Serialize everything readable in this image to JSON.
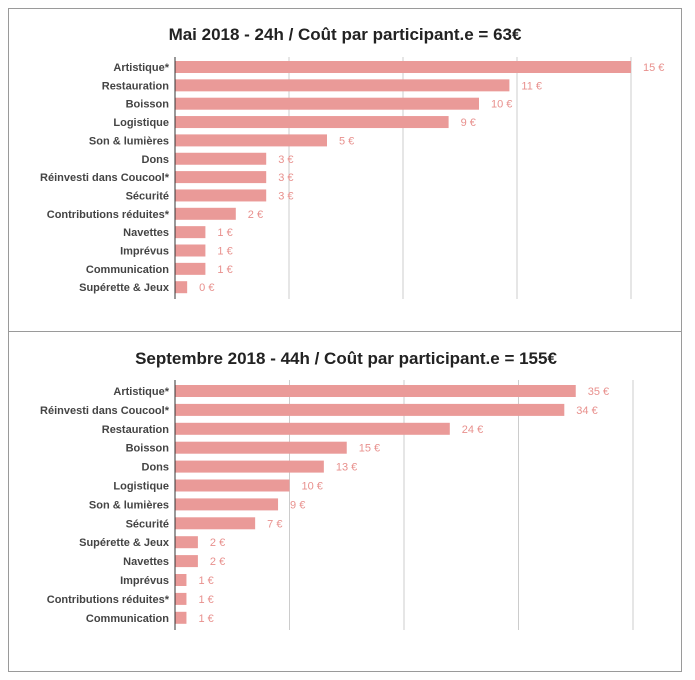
{
  "colors": {
    "bar": "#ea9a98",
    "label": "#e8908d",
    "grid": "#cccccc",
    "axis": "#333333",
    "text": "#444444",
    "title": "#222222"
  },
  "chart_data": [
    {
      "type": "bar",
      "orientation": "horizontal",
      "title": "Mai 2018 - 24h / Coût par participant.e = 63€",
      "categories": [
        "Artistique*",
        "Restauration",
        "Boisson",
        "Logistique",
        "Son & lumières",
        "Dons",
        "Réinvesti dans Coucool*",
        "Sécurité",
        "Contributions réduites*",
        "Navettes",
        "Imprévus",
        "Communication",
        "Supérette & Jeux"
      ],
      "values": [
        15,
        11,
        10,
        9,
        5,
        3,
        3,
        3,
        2,
        1,
        1,
        1,
        0.4
      ],
      "value_labels": [
        "15 €",
        "11 €",
        "10 €",
        "9 €",
        "5 €",
        "3 €",
        "3 €",
        "3 €",
        "2 €",
        "1 €",
        "1 €",
        "1 €",
        "0 €"
      ],
      "xlim": [
        0,
        15
      ],
      "grid": true,
      "legend": "none"
    },
    {
      "type": "bar",
      "orientation": "horizontal",
      "title": "Septembre 2018 - 44h / Coût par participant.e = 155€",
      "categories": [
        "Artistique*",
        "Réinvesti dans Coucool*",
        "Restauration",
        "Boisson",
        "Dons",
        "Logistique",
        "Son & lumières",
        "Sécurité",
        "Supérette & Jeux",
        "Navettes",
        "Imprévus",
        "Contributions réduites*",
        "Communication"
      ],
      "values": [
        35,
        34,
        24,
        15,
        13,
        10,
        9,
        7,
        2,
        2,
        1,
        1,
        1
      ],
      "value_labels": [
        "35 €",
        "34 €",
        "24 €",
        "15 €",
        "13 €",
        "10 €",
        "9 €",
        "7 €",
        "2 €",
        "2 €",
        "1 €",
        "1 €",
        "1 €"
      ],
      "xlim": [
        0,
        40
      ],
      "grid": true,
      "legend": "none"
    }
  ]
}
